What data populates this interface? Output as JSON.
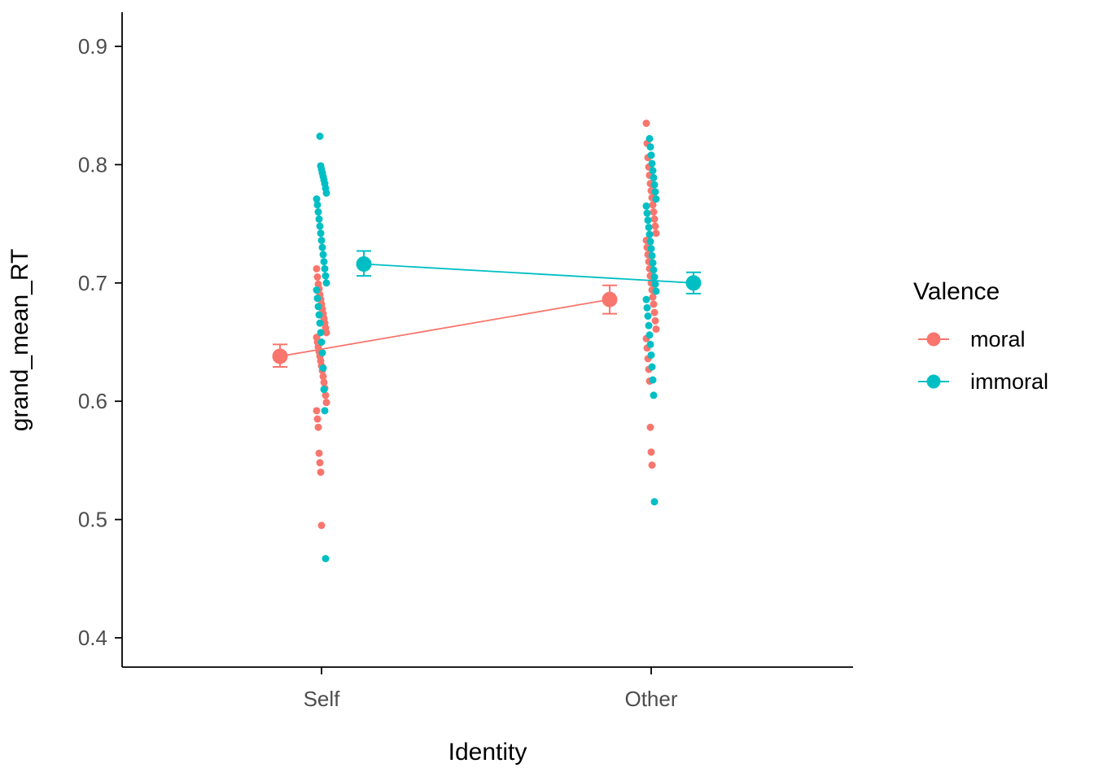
{
  "chart_data": {
    "type": "scatter",
    "title": "",
    "xlabel": "Identity",
    "ylabel": "grand_mean_RT",
    "categories": [
      "Self",
      "Other"
    ],
    "y_ticks": [
      0.4,
      0.5,
      0.6,
      0.7,
      0.8,
      0.9
    ],
    "ylim": [
      0.375,
      0.925
    ],
    "grid": false,
    "legend_title": "Valence",
    "legend_position": "right",
    "series": [
      {
        "name": "moral",
        "color": "#F8766D",
        "means": [
          {
            "category": "Self",
            "mean": 0.638,
            "ci_low": 0.629,
            "ci_high": 0.648
          },
          {
            "category": "Other",
            "mean": 0.686,
            "ci_low": 0.674,
            "ci_high": 0.698
          }
        ],
        "points": {
          "Self": [
            0.712,
            0.705,
            0.699,
            0.695,
            0.69,
            0.686,
            0.682,
            0.678,
            0.674,
            0.67,
            0.666,
            0.662,
            0.658,
            0.654,
            0.65,
            0.646,
            0.642,
            0.638,
            0.634,
            0.63,
            0.626,
            0.621,
            0.616,
            0.611,
            0.605,
            0.599,
            0.592,
            0.585,
            0.578,
            0.556,
            0.548,
            0.54,
            0.495
          ],
          "Other": [
            0.835,
            0.818,
            0.806,
            0.798,
            0.791,
            0.784,
            0.778,
            0.772,
            0.766,
            0.76,
            0.754,
            0.748,
            0.742,
            0.736,
            0.73,
            0.724,
            0.718,
            0.712,
            0.706,
            0.7,
            0.694,
            0.688,
            0.682,
            0.675,
            0.668,
            0.661,
            0.653,
            0.645,
            0.636,
            0.627,
            0.617,
            0.578,
            0.557,
            0.546
          ]
        }
      },
      {
        "name": "immoral",
        "color": "#00BFC4",
        "means": [
          {
            "category": "Self",
            "mean": 0.716,
            "ci_low": 0.706,
            "ci_high": 0.727
          },
          {
            "category": "Other",
            "mean": 0.7,
            "ci_low": 0.691,
            "ci_high": 0.709
          }
        ],
        "points": {
          "Self": [
            0.824,
            0.799,
            0.796,
            0.793,
            0.79,
            0.787,
            0.784,
            0.78,
            0.776,
            0.771,
            0.766,
            0.76,
            0.754,
            0.748,
            0.742,
            0.736,
            0.73,
            0.724,
            0.718,
            0.712,
            0.706,
            0.7,
            0.694,
            0.687,
            0.68,
            0.673,
            0.666,
            0.658,
            0.65,
            0.641,
            0.628,
            0.61,
            0.592,
            0.467
          ],
          "Other": [
            0.822,
            0.815,
            0.808,
            0.801,
            0.795,
            0.789,
            0.783,
            0.777,
            0.771,
            0.765,
            0.759,
            0.753,
            0.747,
            0.741,
            0.735,
            0.729,
            0.723,
            0.717,
            0.711,
            0.705,
            0.699,
            0.693,
            0.686,
            0.679,
            0.672,
            0.664,
            0.656,
            0.648,
            0.639,
            0.629,
            0.618,
            0.605,
            0.515
          ]
        }
      }
    ]
  }
}
